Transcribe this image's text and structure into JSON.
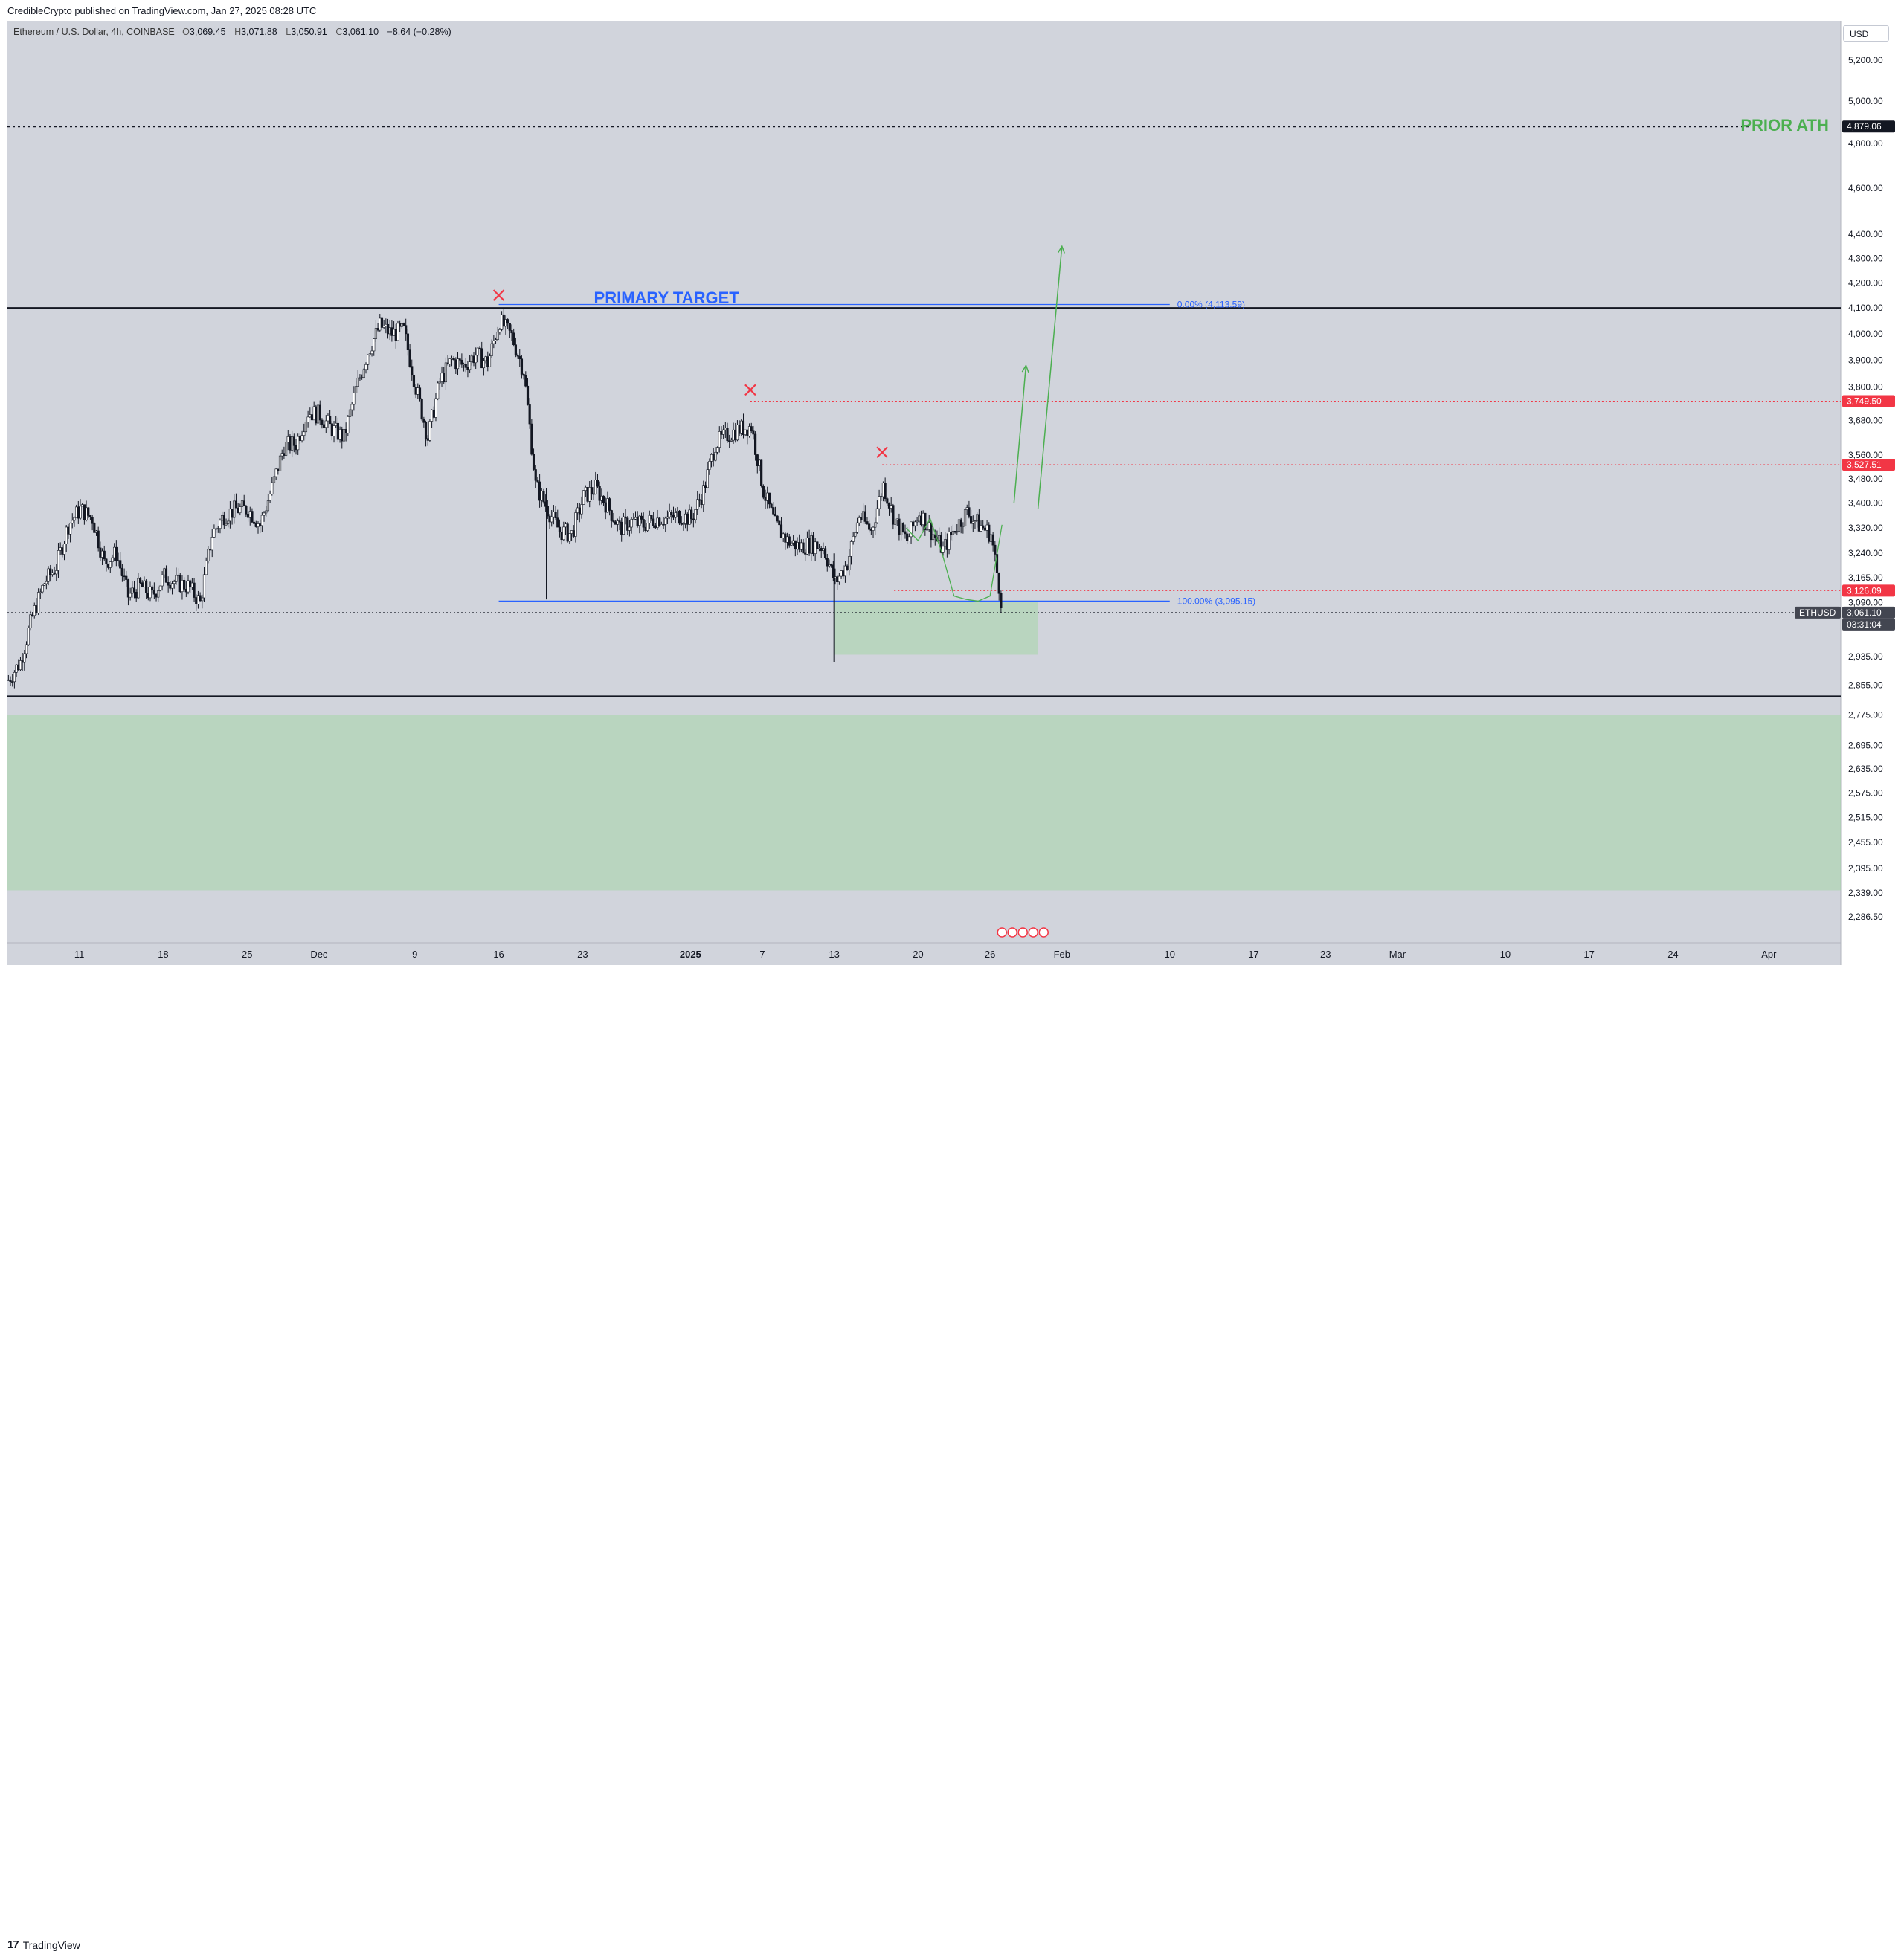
{
  "header": {
    "published_by": "CredibleCrypto published on TradingView.com, Jan 27, 2025 08:28 UTC"
  },
  "legend": {
    "symbol": "Ethereum / U.S. Dollar, 4h, COINBASE",
    "open_label": "O",
    "open": "3,069.45",
    "high_label": "H",
    "high": "3,071.88",
    "low_label": "L",
    "low": "3,050.91",
    "close_label": "C",
    "close": "3,061.10",
    "change": "−8.64 (−0.28%)"
  },
  "currency_button": "USD",
  "footer": {
    "logo_text": "TradingView",
    "logo_mark": "17"
  },
  "colors": {
    "background": "#d1d4dc",
    "candle": "#131722",
    "accent_blue": "#2962ff",
    "green_text": "#4caf50",
    "green_zone": "#a5d6a7",
    "red": "#f23645"
  },
  "chart_data": {
    "type": "candlestick",
    "symbol": "ETHUSD",
    "timeframe": "4h",
    "exchange": "COINBASE",
    "y_scale": "log",
    "ylim": [
      2230,
      5400
    ],
    "xlim": [
      "2024-11-05",
      "2025-04-07"
    ],
    "y_ticks": [
      "5,200.00",
      "5,000.00",
      "4,800.00",
      "4,600.00",
      "4,400.00",
      "4,300.00",
      "4,200.00",
      "4,100.00",
      "4,000.00",
      "3,900.00",
      "3,800.00",
      "3,680.00",
      "3,560.00",
      "3,480.00",
      "3,400.00",
      "3,320.00",
      "3,240.00",
      "3,165.00",
      "3,090.00",
      "2,935.00",
      "2,855.00",
      "2,775.00",
      "2,695.00",
      "2,635.00",
      "2,575.00",
      "2,515.00",
      "2,455.00",
      "2,395.00",
      "2,339.00",
      "2,286.50"
    ],
    "x_ticks": [
      {
        "label": "11",
        "date": "2024-11-11"
      },
      {
        "label": "18",
        "date": "2024-11-18"
      },
      {
        "label": "25",
        "date": "2024-11-25"
      },
      {
        "label": "Dec",
        "date": "2024-12-01"
      },
      {
        "label": "9",
        "date": "2024-12-09"
      },
      {
        "label": "16",
        "date": "2024-12-16"
      },
      {
        "label": "23",
        "date": "2024-12-23"
      },
      {
        "label": "2025",
        "date": "2025-01-01",
        "bold": true
      },
      {
        "label": "7",
        "date": "2025-01-07"
      },
      {
        "label": "13",
        "date": "2025-01-13"
      },
      {
        "label": "20",
        "date": "2025-01-20"
      },
      {
        "label": "26",
        "date": "2025-01-26"
      },
      {
        "label": "Feb",
        "date": "2025-02-01"
      },
      {
        "label": "10",
        "date": "2025-02-10"
      },
      {
        "label": "17",
        "date": "2025-02-17"
      },
      {
        "label": "23",
        "date": "2025-02-23"
      },
      {
        "label": "Mar",
        "date": "2025-03-01"
      },
      {
        "label": "10",
        "date": "2025-03-10"
      },
      {
        "label": "17",
        "date": "2025-03-17"
      },
      {
        "label": "24",
        "date": "2025-03-24"
      },
      {
        "label": "Apr",
        "date": "2025-04-01"
      }
    ],
    "price_path": [
      [
        "2024-11-05",
        2870
      ],
      [
        "2024-11-06",
        2920
      ],
      [
        "2024-11-07",
        3050
      ],
      [
        "2024-11-08",
        3150
      ],
      [
        "2024-11-09",
        3200
      ],
      [
        "2024-11-10",
        3330
      ],
      [
        "2024-11-11",
        3380
      ],
      [
        "2024-11-12",
        3350
      ],
      [
        "2024-11-13",
        3210
      ],
      [
        "2024-11-14",
        3240
      ],
      [
        "2024-11-15",
        3110
      ],
      [
        "2024-11-16",
        3140
      ],
      [
        "2024-11-17",
        3110
      ],
      [
        "2024-11-18",
        3170
      ],
      [
        "2024-11-19",
        3150
      ],
      [
        "2024-11-20",
        3140
      ],
      [
        "2024-11-21",
        3090
      ],
      [
        "2024-11-22",
        3300
      ],
      [
        "2024-11-23",
        3360
      ],
      [
        "2024-11-24",
        3380
      ],
      [
        "2024-11-25",
        3380
      ],
      [
        "2024-11-26",
        3330
      ],
      [
        "2024-11-27",
        3450
      ],
      [
        "2024-11-28",
        3590
      ],
      [
        "2024-11-29",
        3600
      ],
      [
        "2024-11-30",
        3710
      ],
      [
        "2024-12-01",
        3700
      ],
      [
        "2024-12-02",
        3650
      ],
      [
        "2024-12-03",
        3620
      ],
      [
        "2024-12-04",
        3790
      ],
      [
        "2024-12-05",
        3930
      ],
      [
        "2024-12-06",
        4030
      ],
      [
        "2024-12-07",
        4000
      ],
      [
        "2024-12-08",
        4010
      ],
      [
        "2024-12-09",
        3800
      ],
      [
        "2024-12-10",
        3620
      ],
      [
        "2024-12-11",
        3820
      ],
      [
        "2024-12-12",
        3900
      ],
      [
        "2024-12-13",
        3880
      ],
      [
        "2024-12-14",
        3920
      ],
      [
        "2024-12-15",
        3890
      ],
      [
        "2024-12-16",
        4050
      ],
      [
        "2024-12-17",
        3990
      ],
      [
        "2024-12-18",
        3860
      ],
      [
        "2024-12-19",
        3460
      ],
      [
        "2024-12-20",
        3380
      ],
      [
        "2024-12-21",
        3310
      ],
      [
        "2024-12-22",
        3300
      ],
      [
        "2024-12-23",
        3420
      ],
      [
        "2024-12-24",
        3450
      ],
      [
        "2024-12-25",
        3390
      ],
      [
        "2024-12-26",
        3320
      ],
      [
        "2024-12-27",
        3340
      ],
      [
        "2024-12-28",
        3330
      ],
      [
        "2024-12-29",
        3350
      ],
      [
        "2024-12-30",
        3350
      ],
      [
        "2024-12-31",
        3360
      ],
      [
        "2025-01-01",
        3350
      ],
      [
        "2025-01-02",
        3440
      ],
      [
        "2025-01-03",
        3600
      ],
      [
        "2025-01-04",
        3630
      ],
      [
        "2025-01-05",
        3650
      ],
      [
        "2025-01-06",
        3660
      ],
      [
        "2025-01-07",
        3440
      ],
      [
        "2025-01-08",
        3330
      ],
      [
        "2025-01-09",
        3280
      ],
      [
        "2025-01-10",
        3260
      ],
      [
        "2025-01-11",
        3270
      ],
      [
        "2025-01-12",
        3260
      ],
      [
        "2025-01-13",
        3150
      ],
      [
        "2025-01-14",
        3210
      ],
      [
        "2025-01-15",
        3360
      ],
      [
        "2025-01-16",
        3310
      ],
      [
        "2025-01-17",
        3460
      ],
      [
        "2025-01-18",
        3340
      ],
      [
        "2025-01-19",
        3280
      ],
      [
        "2025-01-20",
        3370
      ],
      [
        "2025-01-21",
        3310
      ],
      [
        "2025-01-22",
        3250
      ],
      [
        "2025-01-23",
        3320
      ],
      [
        "2025-01-24",
        3370
      ],
      [
        "2025-01-25",
        3330
      ],
      [
        "2025-01-26",
        3300
      ],
      [
        "2025-01-27",
        3061
      ]
    ],
    "horizontal_lines": [
      {
        "name": "prior-ath",
        "price": 4879.06,
        "style": "dotted",
        "color": "#131722",
        "label": "PRIOR ATH"
      },
      {
        "name": "upper-range",
        "price": 4100,
        "style": "solid",
        "color": "#131722"
      },
      {
        "name": "lower-range",
        "price": 2825,
        "style": "solid",
        "color": "#131722"
      },
      {
        "name": "res-3749",
        "price": 3749.5,
        "style": "dotted",
        "color": "#f23645",
        "from": "2025-01-06"
      },
      {
        "name": "res-3527",
        "price": 3527.51,
        "style": "dotted",
        "color": "#f23645",
        "from": "2025-01-17"
      },
      {
        "name": "res-3126",
        "price": 3126.09,
        "style": "dotted",
        "color": "#f23645",
        "from": "2025-01-18"
      },
      {
        "name": "last-price",
        "price": 3061.1,
        "style": "dotted",
        "color": "#131722"
      }
    ],
    "price_tags": [
      {
        "price": 4879.06,
        "text": "4,879.06",
        "bg": "#131722"
      },
      {
        "price": 3749.5,
        "text": "3,749.50",
        "bg": "#f23645"
      },
      {
        "price": 3527.51,
        "text": "3,527.51",
        "bg": "#f23645"
      },
      {
        "price": 3126.09,
        "text": "3,126.09",
        "bg": "#f23645"
      },
      {
        "price": 3061.1,
        "text": "3,061.10",
        "bg": "#434651",
        "symbol": "ETHUSD",
        "countdown": "03:31:04"
      }
    ],
    "fib": {
      "from": "2024-12-16",
      "to": "2025-02-10",
      "levels": [
        {
          "price": 4113.59,
          "label": "0.00% (4,113.59)"
        },
        {
          "price": 3095.15,
          "label": "100.00% (3,095.15)"
        }
      ]
    },
    "zones": [
      {
        "name": "demand-box",
        "from": "2025-01-13",
        "to": "2025-01-30",
        "top": 3095.15,
        "bottom": 2940,
        "color": "#a5d6a7"
      },
      {
        "name": "lower-demand-zone",
        "from": "2024-11-05",
        "to": "2025-04-07",
        "top": 2775,
        "bottom": 2345,
        "color": "#a5d6a7"
      }
    ],
    "markers": [
      {
        "type": "x",
        "date": "2024-12-16",
        "price": 4150,
        "color": "#f23645"
      },
      {
        "type": "x",
        "date": "2025-01-06",
        "price": 3790,
        "color": "#f23645"
      },
      {
        "type": "x",
        "date": "2025-01-17",
        "price": 3570,
        "color": "#f23645"
      }
    ],
    "annotations": [
      {
        "text": "PRIMARY TARGET",
        "date": "2024-12-30",
        "price": 4135,
        "color": "#2962ff"
      },
      {
        "text": "PRIOR ATH",
        "date": "2025-04-06",
        "price": 4879.06,
        "color": "#4caf50",
        "anchor": "end"
      }
    ],
    "projection_arrows": [
      {
        "name": "projection-1",
        "points": [
          [
            "2025-01-28",
            3400
          ],
          [
            "2025-01-29",
            3880
          ]
        ]
      },
      {
        "name": "projection-2",
        "points": [
          [
            "2025-01-30",
            3380
          ],
          [
            "2025-02-01",
            4350
          ]
        ]
      }
    ],
    "projection_path": [
      [
        "2025-01-19",
        3320
      ],
      [
        "2025-01-20",
        3280
      ],
      [
        "2025-01-21",
        3350
      ],
      [
        "2025-01-22",
        3240
      ],
      [
        "2025-01-23",
        3110
      ],
      [
        "2025-01-24",
        3100
      ],
      [
        "2025-01-25",
        3095
      ],
      [
        "2025-01-26",
        3110
      ],
      [
        "2025-01-27",
        3330
      ]
    ]
  }
}
